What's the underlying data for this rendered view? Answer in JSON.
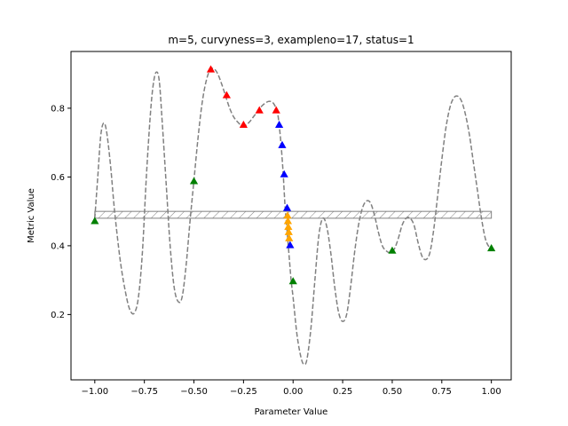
{
  "chart_data": {
    "type": "line",
    "title": "m=5, curvyness=3, exampleno=17, status=1",
    "xlabel": "Parameter Value",
    "ylabel": "Metric Value",
    "xlim": [
      -1.12,
      1.1
    ],
    "ylim": [
      0.01,
      0.965
    ],
    "xticks": [
      -1.0,
      -0.75,
      -0.5,
      -0.25,
      0.0,
      0.25,
      0.5,
      0.75,
      1.0
    ],
    "xtick_labels": [
      "−1.00",
      "−0.75",
      "−0.50",
      "−0.25",
      "0.00",
      "0.25",
      "0.50",
      "0.75",
      "1.00"
    ],
    "yticks": [
      0.2,
      0.4,
      0.6,
      0.8
    ],
    "ytick_labels": [
      "0.2",
      "0.4",
      "0.6",
      "0.8"
    ],
    "grid": false,
    "colors": {
      "curve": "#808080",
      "band_edge": "#808080",
      "green": "#008000",
      "red": "#ff0000",
      "blue": "#0000ff",
      "orange": "#ffa500"
    },
    "band": {
      "x": [
        -1.0,
        1.0
      ],
      "y": [
        0.48,
        0.5
      ],
      "hatch": "////"
    },
    "curve": {
      "style": "dashed",
      "points": [
        [
          -1.0,
          0.48
        ],
        [
          -0.985,
          0.6
        ],
        [
          -0.97,
          0.72
        ],
        [
          -0.955,
          0.757
        ],
        [
          -0.94,
          0.73
        ],
        [
          -0.92,
          0.63
        ],
        [
          -0.9,
          0.5
        ],
        [
          -0.87,
          0.35
        ],
        [
          -0.84,
          0.25
        ],
        [
          -0.82,
          0.21
        ],
        [
          -0.8,
          0.205
        ],
        [
          -0.78,
          0.25
        ],
        [
          -0.76,
          0.38
        ],
        [
          -0.74,
          0.6
        ],
        [
          -0.72,
          0.78
        ],
        [
          -0.705,
          0.87
        ],
        [
          -0.69,
          0.905
        ],
        [
          -0.675,
          0.88
        ],
        [
          -0.66,
          0.76
        ],
        [
          -0.64,
          0.58
        ],
        [
          -0.62,
          0.4
        ],
        [
          -0.6,
          0.28
        ],
        [
          -0.58,
          0.238
        ],
        [
          -0.56,
          0.25
        ],
        [
          -0.54,
          0.34
        ],
        [
          -0.52,
          0.47
        ],
        [
          -0.5,
          0.59
        ],
        [
          -0.48,
          0.71
        ],
        [
          -0.46,
          0.81
        ],
        [
          -0.44,
          0.875
        ],
        [
          -0.42,
          0.91
        ],
        [
          -0.4,
          0.915
        ],
        [
          -0.38,
          0.9
        ],
        [
          -0.36,
          0.87
        ],
        [
          -0.34,
          0.835
        ],
        [
          -0.32,
          0.8
        ],
        [
          -0.3,
          0.775
        ],
        [
          -0.28,
          0.76
        ],
        [
          -0.26,
          0.75
        ],
        [
          -0.24,
          0.75
        ],
        [
          -0.22,
          0.76
        ],
        [
          -0.2,
          0.775
        ],
        [
          -0.18,
          0.79
        ],
        [
          -0.16,
          0.805
        ],
        [
          -0.14,
          0.815
        ],
        [
          -0.12,
          0.82
        ],
        [
          -0.1,
          0.815
        ],
        [
          -0.08,
          0.79
        ],
        [
          -0.07,
          0.75
        ],
        [
          -0.06,
          0.69
        ],
        [
          -0.05,
          0.61
        ],
        [
          -0.04,
          0.51
        ],
        [
          -0.03,
          0.44
        ],
        [
          -0.02,
          0.37
        ],
        [
          -0.01,
          0.3
        ],
        [
          0.0,
          0.25
        ],
        [
          0.02,
          0.14
        ],
        [
          0.04,
          0.075
        ],
        [
          0.055,
          0.055
        ],
        [
          0.07,
          0.07
        ],
        [
          0.09,
          0.16
        ],
        [
          0.11,
          0.3
        ],
        [
          0.13,
          0.43
        ],
        [
          0.15,
          0.48
        ],
        [
          0.17,
          0.455
        ],
        [
          0.19,
          0.38
        ],
        [
          0.21,
          0.28
        ],
        [
          0.23,
          0.205
        ],
        [
          0.25,
          0.18
        ],
        [
          0.27,
          0.2
        ],
        [
          0.29,
          0.28
        ],
        [
          0.31,
          0.38
        ],
        [
          0.33,
          0.46
        ],
        [
          0.35,
          0.51
        ],
        [
          0.37,
          0.53
        ],
        [
          0.39,
          0.525
        ],
        [
          0.41,
          0.49
        ],
        [
          0.43,
          0.44
        ],
        [
          0.45,
          0.4
        ],
        [
          0.47,
          0.385
        ],
        [
          0.49,
          0.38
        ],
        [
          0.51,
          0.39
        ],
        [
          0.53,
          0.42
        ],
        [
          0.55,
          0.46
        ],
        [
          0.57,
          0.48
        ],
        [
          0.59,
          0.48
        ],
        [
          0.61,
          0.46
        ],
        [
          0.63,
          0.41
        ],
        [
          0.65,
          0.37
        ],
        [
          0.67,
          0.36
        ],
        [
          0.69,
          0.38
        ],
        [
          0.71,
          0.45
        ],
        [
          0.73,
          0.55
        ],
        [
          0.75,
          0.65
        ],
        [
          0.77,
          0.74
        ],
        [
          0.79,
          0.8
        ],
        [
          0.81,
          0.83
        ],
        [
          0.83,
          0.835
        ],
        [
          0.85,
          0.82
        ],
        [
          0.87,
          0.78
        ],
        [
          0.89,
          0.72
        ],
        [
          0.91,
          0.64
        ],
        [
          0.93,
          0.56
        ],
        [
          0.95,
          0.48
        ],
        [
          0.97,
          0.42
        ],
        [
          0.99,
          0.395
        ],
        [
          1.0,
          0.393
        ]
      ]
    },
    "series": [
      {
        "color": "green",
        "marker": "triangle",
        "points": [
          [
            -1.0,
            0.472
          ],
          [
            -0.5,
            0.588
          ],
          [
            0.0,
            0.297
          ],
          [
            0.5,
            0.386
          ],
          [
            1.0,
            0.393
          ]
        ]
      },
      {
        "color": "red",
        "marker": "triangle",
        "points": [
          [
            -0.415,
            0.913
          ],
          [
            -0.335,
            0.838
          ],
          [
            -0.25,
            0.752
          ],
          [
            -0.17,
            0.794
          ],
          [
            -0.085,
            0.794
          ]
        ]
      },
      {
        "color": "blue",
        "marker": "triangle",
        "points": [
          [
            -0.07,
            0.752
          ],
          [
            -0.055,
            0.693
          ],
          [
            -0.045,
            0.608
          ],
          [
            -0.03,
            0.51
          ],
          [
            -0.015,
            0.402
          ]
        ]
      },
      {
        "color": "orange",
        "marker": "triangle",
        "points": [
          [
            -0.028,
            0.488
          ],
          [
            -0.026,
            0.472
          ],
          [
            -0.024,
            0.455
          ],
          [
            -0.022,
            0.44
          ],
          [
            -0.02,
            0.422
          ]
        ]
      }
    ]
  }
}
